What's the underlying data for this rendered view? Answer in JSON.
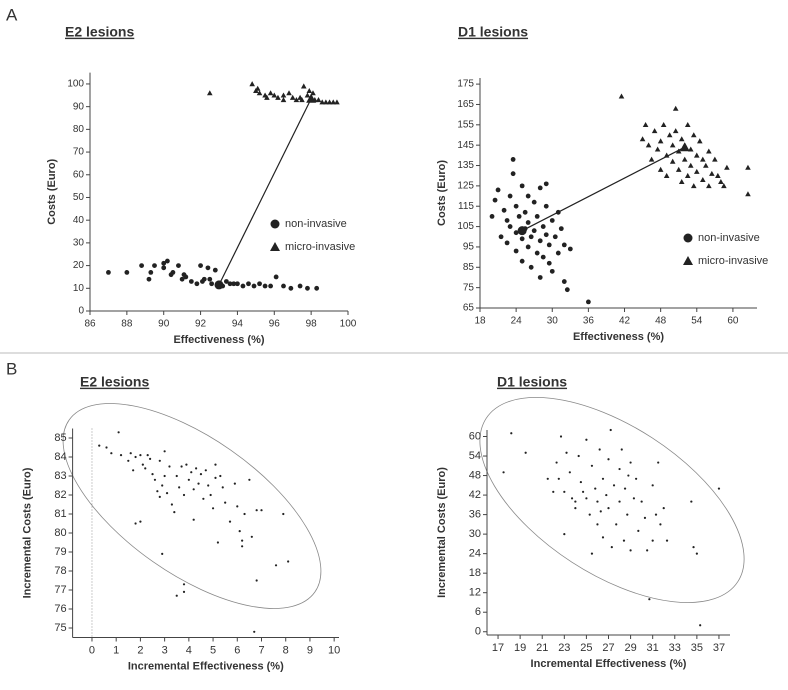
{
  "panels": [
    "A",
    "B"
  ],
  "chart_data": [
    {
      "type": "scatter",
      "title": "E2 lesions",
      "xlabel": "Effectiveness (%)",
      "ylabel": "Costs (Euro)",
      "xlim": [
        86,
        100
      ],
      "ylim": [
        0,
        105
      ],
      "xticks": [
        86,
        88,
        90,
        92,
        94,
        96,
        98,
        100
      ],
      "yticks": [
        0,
        10,
        20,
        30,
        40,
        50,
        60,
        70,
        80,
        90,
        100
      ],
      "legend": "right",
      "connector": {
        "x": [
          93,
          98
        ],
        "y": [
          11.5,
          93.5
        ]
      },
      "series": [
        {
          "name": "non-invasive",
          "marker": "circle",
          "color": "#222",
          "x": [
            87,
            88,
            88.8,
            89.2,
            89.3,
            89.5,
            90,
            90.2,
            90.4,
            90.5,
            90.8,
            91,
            91.1,
            91.2,
            91.5,
            91.8,
            92,
            92.1,
            92.2,
            92.4,
            92.5,
            92.6,
            92.8,
            93,
            93.2,
            93.4,
            93.6,
            93.8,
            94,
            94.3,
            94.6,
            94.9,
            95.2,
            95.5,
            95.8,
            96.1,
            96.5,
            96.9,
            97.4,
            97.8,
            98.3,
            90
          ],
          "values": [
            17,
            17,
            20,
            14,
            17,
            20,
            19,
            22,
            16,
            17,
            20,
            14,
            16,
            15,
            13,
            12,
            20,
            13,
            14,
            19,
            14,
            12,
            18,
            12,
            11,
            13,
            12,
            12,
            12,
            11,
            12,
            11,
            12,
            11,
            11,
            15,
            11,
            10,
            11,
            10,
            10,
            21
          ]
        },
        {
          "name": "micro-invasive",
          "marker": "triangle",
          "color": "#222",
          "x": [
            92.5,
            94.8,
            95,
            95.2,
            95.5,
            95.8,
            96,
            96.2,
            96.5,
            96.8,
            97,
            97.2,
            97.4,
            97.6,
            97.8,
            98,
            98.2,
            98.4,
            98.6,
            98.8,
            99,
            99.2,
            99.4,
            97.5,
            96.5,
            95.6,
            97.9,
            98.1,
            95.1
          ],
          "values": [
            96,
            100,
            97,
            96,
            95,
            96,
            95,
            94,
            95,
            96,
            94,
            93,
            94,
            99,
            95,
            94,
            93,
            93,
            92,
            92,
            92,
            92,
            92,
            93,
            93,
            94,
            97,
            96,
            98
          ]
        }
      ]
    },
    {
      "type": "scatter",
      "title": "D1 lesions",
      "xlabel": "Effectiveness (%)",
      "ylabel": "Costs (Euro)",
      "xlim": [
        18,
        64
      ],
      "ylim": [
        65,
        178
      ],
      "xticks": [
        18,
        24,
        30,
        36,
        42,
        48,
        54,
        60
      ],
      "yticks": [
        65,
        75,
        85,
        95,
        105,
        115,
        125,
        135,
        145,
        155,
        165,
        175
      ],
      "legend": "right",
      "connector": {
        "x": [
          25,
          52
        ],
        "y": [
          103,
          144
        ]
      },
      "series": [
        {
          "name": "non-invasive",
          "marker": "circle",
          "color": "#222",
          "x": [
            20,
            20.5,
            21,
            21.5,
            22,
            22.5,
            22.5,
            23,
            23,
            23.5,
            23.5,
            24,
            24,
            24,
            24.5,
            25,
            25,
            25,
            25.5,
            25.5,
            26,
            26,
            26,
            26.5,
            26.5,
            27,
            27,
            27.5,
            27.5,
            28,
            28,
            28,
            28.5,
            28.5,
            29,
            29,
            29,
            29.5,
            29.5,
            30,
            30,
            30.5,
            31,
            31,
            31.5,
            32,
            32,
            32.5,
            33,
            36
          ],
          "values": [
            110,
            118,
            123,
            100,
            113,
            108,
            97,
            120,
            105,
            131,
            138,
            102,
            93,
            115,
            110,
            99,
            125,
            88,
            104,
            112,
            95,
            107,
            120,
            100,
            85,
            103,
            117,
            92,
            110,
            98,
            124,
            80,
            105,
            90,
            101,
            115,
            126,
            87,
            96,
            108,
            83,
            100,
            92,
            112,
            104,
            78,
            96,
            74,
            94,
            68
          ]
        },
        {
          "name": "micro-invasive",
          "marker": "triangle",
          "color": "#222",
          "x": [
            41.5,
            45,
            46,
            46.5,
            47,
            47.5,
            48,
            48,
            48.5,
            49,
            49,
            49.5,
            50,
            50,
            50.5,
            50.5,
            51,
            51,
            51.5,
            51.5,
            52,
            52,
            52.5,
            52.5,
            53,
            53,
            53.5,
            53.5,
            54,
            54,
            54.5,
            55,
            55,
            55.5,
            56,
            56,
            56.5,
            57,
            57.5,
            58,
            58.5,
            59,
            62.5,
            62.5,
            45.5
          ],
          "values": [
            169,
            148,
            145,
            138,
            152,
            143,
            133,
            147,
            155,
            140,
            130,
            150,
            145,
            137,
            163,
            152,
            142,
            133,
            148,
            127,
            145,
            138,
            155,
            130,
            143,
            135,
            150,
            125,
            140,
            132,
            147,
            138,
            128,
            135,
            142,
            125,
            131,
            138,
            130,
            127,
            125,
            134,
            134,
            121,
            155
          ]
        }
      ]
    },
    {
      "type": "scatter",
      "title": "E2 lesions",
      "xlabel": "Incremental Effectiveness (%)",
      "ylabel": "Incremental Costs (Euro)",
      "xlim": [
        -0.8,
        10.2
      ],
      "ylim": [
        74.5,
        85.5
      ],
      "xticks": [
        0,
        1,
        2,
        3,
        4,
        5,
        6,
        7,
        8,
        9,
        10
      ],
      "yticks": [
        75,
        76,
        77,
        78,
        79,
        80,
        81,
        82,
        83,
        84,
        85
      ],
      "vline": 0,
      "series": [
        {
          "marker": "dot",
          "color": "#222",
          "x": [
            0.3,
            0.6,
            0.8,
            1.1,
            1.2,
            1.5,
            1.6,
            1.7,
            1.8,
            1.8,
            2,
            2,
            2.1,
            2.2,
            2.3,
            2.4,
            2.5,
            2.6,
            2.7,
            2.8,
            2.8,
            2.9,
            3,
            3,
            3.1,
            3.2,
            3.3,
            3.4,
            3.5,
            3.5,
            3.6,
            3.7,
            3.8,
            3.8,
            3.8,
            3.9,
            4,
            4.1,
            4.2,
            4.2,
            4.3,
            4.4,
            4.5,
            4.6,
            4.7,
            4.8,
            4.9,
            5,
            5.1,
            5.1,
            5.2,
            5.3,
            5.4,
            5.5,
            5.7,
            5.9,
            6,
            6.1,
            6.2,
            6.2,
            6.3,
            6.5,
            6.6,
            6.7,
            6.8,
            6.8,
            7,
            7.6,
            7.9,
            8.1,
            2.9
          ],
          "values": [
            84.6,
            84.5,
            84.2,
            85.3,
            84.1,
            83.8,
            84.2,
            83.3,
            84,
            80.5,
            84.1,
            80.6,
            83.6,
            83.4,
            84.1,
            83.9,
            83.1,
            82.8,
            82.2,
            83.8,
            81.9,
            82.5,
            84.3,
            83,
            82.1,
            83.5,
            81.5,
            81.1,
            83,
            76.7,
            82.4,
            83.5,
            82,
            77.3,
            76.9,
            83.6,
            82.8,
            83.2,
            82.3,
            80.7,
            83.4,
            82.6,
            83.1,
            81.8,
            83.3,
            82.5,
            82,
            81.3,
            83.6,
            82.9,
            79.5,
            83,
            82.4,
            81.6,
            80.6,
            82.6,
            81.4,
            80.1,
            79.6,
            79.3,
            81,
            82.8,
            79.8,
            74.8,
            77.5,
            81.2,
            81.2,
            78.3,
            81,
            78.5,
            78.9
          ]
        }
      ]
    },
    {
      "type": "scatter",
      "title": "D1 lesions",
      "xlabel": "Incremental Effectiveness (%)",
      "ylabel": "Incremental Costs (Euro)",
      "xlim": [
        16,
        38
      ],
      "ylim": [
        -1,
        62
      ],
      "xticks": [
        17,
        19,
        21,
        23,
        25,
        27,
        29,
        31,
        33,
        35,
        37
      ],
      "yticks": [
        0,
        6,
        12,
        18,
        24,
        30,
        36,
        42,
        48,
        54,
        60
      ],
      "series": [
        {
          "marker": "dot",
          "color": "#222",
          "x": [
            17.5,
            18.2,
            19.5,
            21.5,
            22,
            22.3,
            22.5,
            22.7,
            23,
            23,
            23.2,
            23.5,
            23.7,
            24,
            24,
            24.3,
            24.5,
            24.7,
            25,
            25,
            25.3,
            25.5,
            25.5,
            25.8,
            26,
            26,
            26.2,
            26.5,
            26.5,
            26.8,
            27,
            27,
            27.2,
            27.3,
            27.5,
            27.7,
            28,
            28,
            28.2,
            28.4,
            28.5,
            28.7,
            29,
            29,
            29.3,
            29.5,
            29.7,
            30,
            30.3,
            30.5,
            30.7,
            31,
            31,
            31.3,
            31.5,
            31.7,
            32,
            32.3,
            34.5,
            34.7,
            35,
            35.3,
            37,
            28.8,
            26.3
          ],
          "values": [
            49,
            61,
            55,
            47,
            43,
            52,
            47,
            60,
            43,
            30,
            55,
            49,
            41,
            40,
            38,
            54,
            46,
            43,
            59,
            41,
            36,
            51,
            24,
            44,
            40,
            33,
            56,
            47,
            29,
            42,
            53,
            38,
            62,
            26,
            45,
            33,
            50,
            40,
            56,
            28,
            44,
            36,
            52,
            25,
            41,
            47,
            31,
            40,
            35,
            25,
            10,
            45,
            28,
            36,
            52,
            33,
            38,
            28,
            40,
            26,
            24,
            2,
            44,
            48,
            37
          ]
        }
      ]
    }
  ]
}
